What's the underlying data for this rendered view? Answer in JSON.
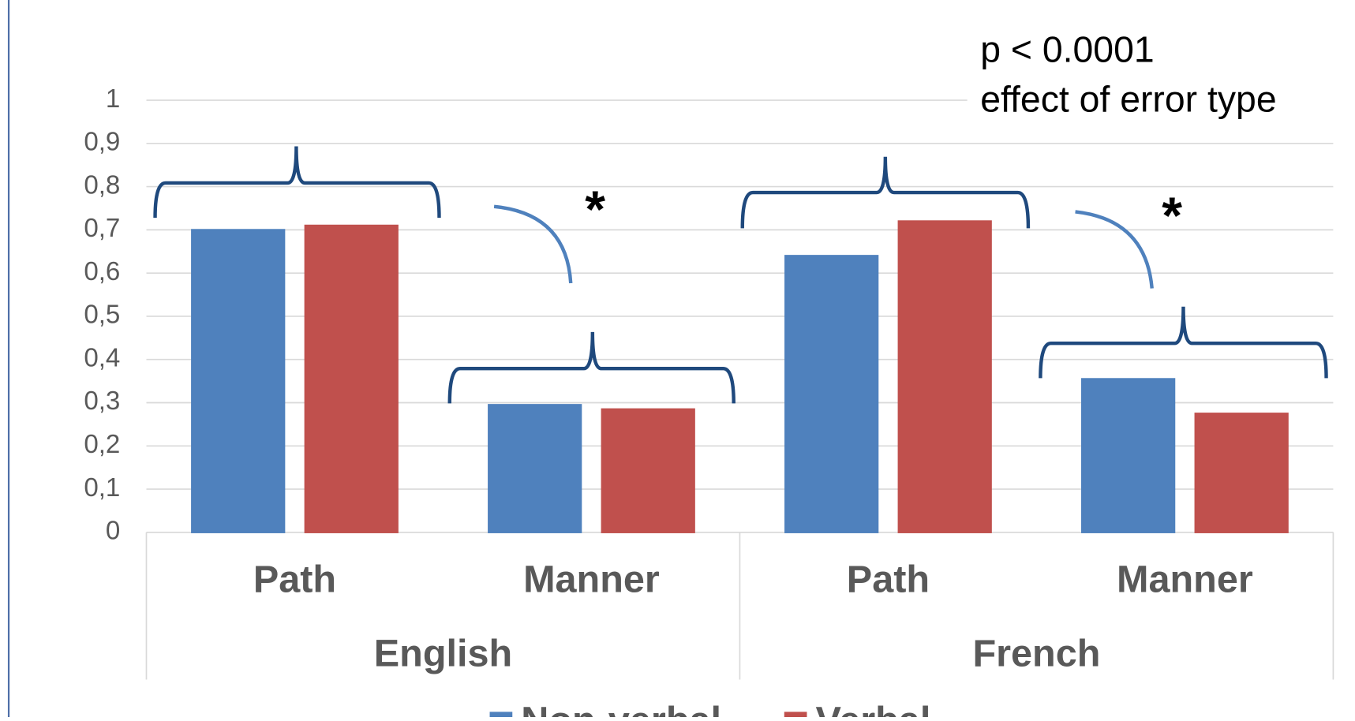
{
  "chart_data": {
    "type": "bar",
    "annotations": [
      "p < 0.0001",
      "effect of error type",
      "*",
      "*"
    ],
    "categories": [
      "Path",
      "Manner",
      "Path",
      "Manner"
    ],
    "group_labels": [
      "English",
      "French"
    ],
    "series": [
      {
        "name": "Non-verbal",
        "color": "#4f81bd",
        "values": [
          0.7,
          0.295,
          0.64,
          0.355
        ]
      },
      {
        "name": "Verbal",
        "color": "#c0504d",
        "values": [
          0.71,
          0.285,
          0.72,
          0.275
        ]
      }
    ],
    "ylim": [
      0,
      1
    ],
    "yticks": [
      0,
      {
        "value": 0.1,
        "label": "0,1"
      },
      {
        "value": 0.2,
        "label": "0,2"
      },
      {
        "value": 0.3,
        "label": "0,3"
      },
      {
        "value": 0.4,
        "label": "0,4"
      },
      {
        "value": 0.5,
        "label": "0,5"
      },
      {
        "value": 0.6,
        "label": "0,6"
      },
      {
        "value": 0.7,
        "label": "0,7"
      },
      {
        "value": 0.8,
        "label": "0,8"
      },
      {
        "value": 0.9,
        "label": "0,9"
      },
      1
    ],
    "grid": true
  }
}
